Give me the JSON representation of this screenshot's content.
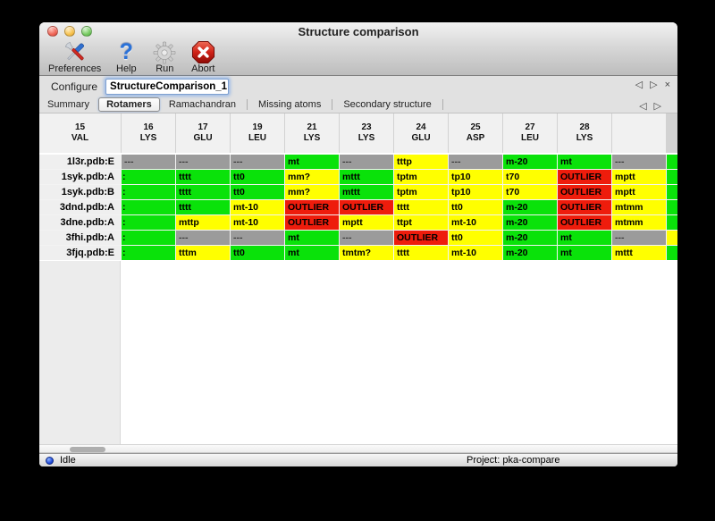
{
  "window": {
    "title": "Structure comparison"
  },
  "toolbar": {
    "items": [
      {
        "label": "Preferences",
        "icon": "tools-icon"
      },
      {
        "label": "Help",
        "icon": "question-icon"
      },
      {
        "label": "Run",
        "icon": "gear-icon"
      },
      {
        "label": "Abort",
        "icon": "abort-icon"
      }
    ]
  },
  "configure": {
    "label": "Configure",
    "value": "StructureComparison_1",
    "nav": {
      "prev": "◁",
      "next": "▷",
      "close": "×"
    }
  },
  "tabs": {
    "items": [
      "Summary",
      "Rotamers",
      "Ramachandran",
      "Missing atoms",
      "Secondary structure"
    ],
    "selected": "Rotamers",
    "nav": {
      "prev": "◁",
      "next": "▷"
    }
  },
  "colors": {
    "cells": {
      "green": "#0ae20a",
      "yellow": "#ffff00",
      "gray": "#9b9b9b",
      "red": "#ee1c0c"
    }
  },
  "table": {
    "columns": [
      {
        "num": "15",
        "res": "VAL"
      },
      {
        "num": "16",
        "res": "LYS"
      },
      {
        "num": "17",
        "res": "GLU"
      },
      {
        "num": "19",
        "res": "LEU"
      },
      {
        "num": "21",
        "res": "LYS"
      },
      {
        "num": "23",
        "res": "LYS"
      },
      {
        "num": "24",
        "res": "GLU"
      },
      {
        "num": "25",
        "res": "ASP"
      },
      {
        "num": "27",
        "res": "LEU"
      },
      {
        "num": "28",
        "res": "LYS"
      },
      {
        "num": "",
        "res": ""
      }
    ],
    "rows": [
      {
        "label": "1l3r.pdb:E",
        "cells": [
          {
            "t": "---",
            "c": "gray"
          },
          {
            "t": "---",
            "c": "gray"
          },
          {
            "t": "---",
            "c": "gray"
          },
          {
            "t": "mt",
            "c": "green"
          },
          {
            "t": "---",
            "c": "gray"
          },
          {
            "t": "tttp",
            "c": "yellow"
          },
          {
            "t": "---",
            "c": "gray"
          },
          {
            "t": "m-20",
            "c": "green"
          },
          {
            "t": "mt",
            "c": "green"
          },
          {
            "t": "---",
            "c": "gray"
          },
          {
            "t": "",
            "c": "green"
          }
        ]
      },
      {
        "label": "1syk.pdb:A",
        "cells": [
          {
            "t": ":",
            "c": "green"
          },
          {
            "t": "tttt",
            "c": "green"
          },
          {
            "t": "tt0",
            "c": "green"
          },
          {
            "t": "mm?",
            "c": "yellow"
          },
          {
            "t": "mttt",
            "c": "green"
          },
          {
            "t": "tptm",
            "c": "yellow"
          },
          {
            "t": "tp10",
            "c": "yellow"
          },
          {
            "t": "t70",
            "c": "yellow"
          },
          {
            "t": "OUTLIER",
            "c": "red"
          },
          {
            "t": "mptt",
            "c": "yellow"
          },
          {
            "t": "",
            "c": "green"
          }
        ]
      },
      {
        "label": "1syk.pdb:B",
        "cells": [
          {
            "t": ":",
            "c": "green"
          },
          {
            "t": "tttt",
            "c": "green"
          },
          {
            "t": "tt0",
            "c": "green"
          },
          {
            "t": "mm?",
            "c": "yellow"
          },
          {
            "t": "mttt",
            "c": "green"
          },
          {
            "t": "tptm",
            "c": "yellow"
          },
          {
            "t": "tp10",
            "c": "yellow"
          },
          {
            "t": "t70",
            "c": "yellow"
          },
          {
            "t": "OUTLIER",
            "c": "red"
          },
          {
            "t": "mptt",
            "c": "yellow"
          },
          {
            "t": "",
            "c": "green"
          }
        ]
      },
      {
        "label": "3dnd.pdb:A",
        "cells": [
          {
            "t": ":",
            "c": "green"
          },
          {
            "t": "tttt",
            "c": "green"
          },
          {
            "t": "mt-10",
            "c": "yellow"
          },
          {
            "t": "OUTLIER",
            "c": "red"
          },
          {
            "t": "OUTLIER",
            "c": "red"
          },
          {
            "t": "tttt",
            "c": "yellow"
          },
          {
            "t": "tt0",
            "c": "yellow"
          },
          {
            "t": "m-20",
            "c": "green"
          },
          {
            "t": "OUTLIER",
            "c": "red"
          },
          {
            "t": "mtmm",
            "c": "yellow"
          },
          {
            "t": "",
            "c": "green"
          }
        ]
      },
      {
        "label": "3dne.pdb:A",
        "cells": [
          {
            "t": ":",
            "c": "green"
          },
          {
            "t": "mttp",
            "c": "yellow"
          },
          {
            "t": "mt-10",
            "c": "yellow"
          },
          {
            "t": "OUTLIER",
            "c": "red"
          },
          {
            "t": "mptt",
            "c": "yellow"
          },
          {
            "t": "ttpt",
            "c": "yellow"
          },
          {
            "t": "mt-10",
            "c": "yellow"
          },
          {
            "t": "m-20",
            "c": "green"
          },
          {
            "t": "OUTLIER",
            "c": "red"
          },
          {
            "t": "mtmm",
            "c": "yellow"
          },
          {
            "t": "",
            "c": "green"
          }
        ]
      },
      {
        "label": "3fhi.pdb:A",
        "cells": [
          {
            "t": ":",
            "c": "green"
          },
          {
            "t": "---",
            "c": "gray"
          },
          {
            "t": "---",
            "c": "gray"
          },
          {
            "t": "mt",
            "c": "green"
          },
          {
            "t": "---",
            "c": "gray"
          },
          {
            "t": "OUTLIER",
            "c": "red"
          },
          {
            "t": "tt0",
            "c": "yellow"
          },
          {
            "t": "m-20",
            "c": "green"
          },
          {
            "t": "mt",
            "c": "green"
          },
          {
            "t": "---",
            "c": "gray"
          },
          {
            "t": "",
            "c": "yellow"
          }
        ]
      },
      {
        "label": "3fjq.pdb:E",
        "cells": [
          {
            "t": ":",
            "c": "green"
          },
          {
            "t": "tttm",
            "c": "yellow"
          },
          {
            "t": "tt0",
            "c": "green"
          },
          {
            "t": "mt",
            "c": "green"
          },
          {
            "t": "tmtm?",
            "c": "yellow"
          },
          {
            "t": "tttt",
            "c": "yellow"
          },
          {
            "t": "mt-10",
            "c": "yellow"
          },
          {
            "t": "m-20",
            "c": "green"
          },
          {
            "t": "mt",
            "c": "green"
          },
          {
            "t": "mttt",
            "c": "yellow"
          },
          {
            "t": "",
            "c": "green"
          }
        ]
      }
    ]
  },
  "statusbar": {
    "status": "Idle",
    "project": "Project: pka-compare"
  }
}
